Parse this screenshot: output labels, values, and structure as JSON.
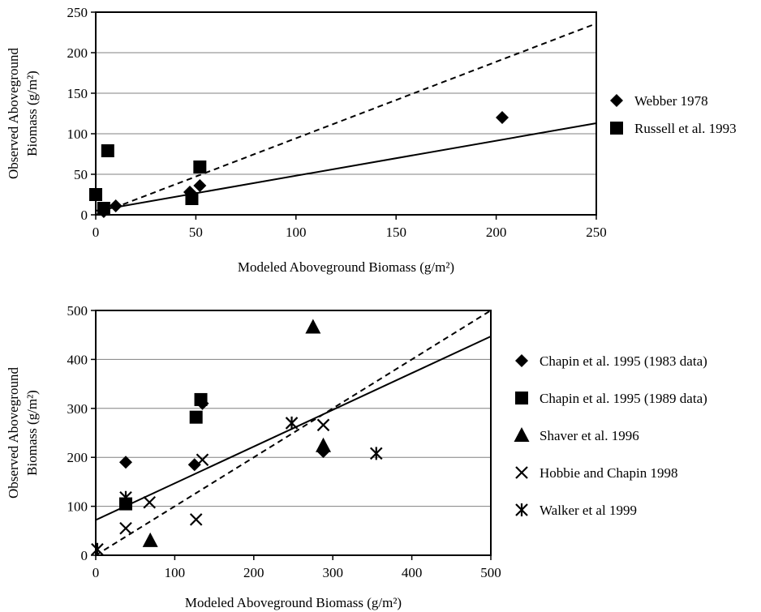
{
  "chart_data": [
    {
      "type": "scatter",
      "xlabel": "Modeled Aboveground Biomass (g/m²)",
      "ylabel_line1": "Observed Aboveground",
      "ylabel_line2": "Biomass (g/m²)",
      "xlim": [
        0,
        250
      ],
      "ylim": [
        0,
        250
      ],
      "xticks": [
        "0",
        "50",
        "100",
        "150",
        "200",
        "250"
      ],
      "yticks": [
        "0",
        "50",
        "100",
        "150",
        "200",
        "250"
      ],
      "grid": "horizontal",
      "legend_position": "right",
      "series": [
        {
          "name": "Webber 1978",
          "marker": "diamond",
          "points": [
            [
              4,
              4
            ],
            [
              10,
              11
            ],
            [
              47,
              28
            ],
            [
              52,
              36
            ],
            [
              203,
              120
            ]
          ]
        },
        {
          "name": "Russell et al. 1993",
          "marker": "square",
          "points": [
            [
              0,
              25
            ],
            [
              4,
              8
            ],
            [
              6,
              79
            ],
            [
              48,
              20
            ],
            [
              52,
              59
            ]
          ]
        }
      ],
      "lines": [
        {
          "style": "dashed",
          "from": [
            0,
            0
          ],
          "to": [
            250,
            236
          ]
        },
        {
          "style": "solid",
          "from": [
            0,
            5
          ],
          "to": [
            250,
            113
          ]
        }
      ]
    },
    {
      "type": "scatter",
      "xlabel": "Modeled Aboveground Biomass (g/m²)",
      "ylabel_line1": "Observed Aboveground",
      "ylabel_line2": "Biomass (g/m²)",
      "xlim": [
        0,
        500
      ],
      "ylim": [
        0,
        500
      ],
      "xticks": [
        "0",
        "100",
        "200",
        "300",
        "400",
        "500"
      ],
      "yticks": [
        "0",
        "100",
        "200",
        "300",
        "400",
        "500"
      ],
      "grid": "horizontal",
      "legend_position": "right",
      "series": [
        {
          "name": "Chapin et al. 1995 (1983 data)",
          "marker": "diamond",
          "points": [
            [
              38,
              190
            ],
            [
              125,
              185
            ],
            [
              135,
              310
            ],
            [
              288,
              212
            ]
          ]
        },
        {
          "name": "Chapin et al. 1995 (1989 data)",
          "marker": "square",
          "points": [
            [
              38,
              105
            ],
            [
              127,
              282
            ],
            [
              133,
              318
            ]
          ]
        },
        {
          "name": "Shaver et al. 1996",
          "marker": "triangle",
          "points": [
            [
              69,
              30
            ],
            [
              275,
              466
            ],
            [
              288,
              224
            ]
          ]
        },
        {
          "name": "Hobbie and Chapin 1998",
          "marker": "x",
          "points": [
            [
              38,
              55
            ],
            [
              68,
              108
            ],
            [
              127,
              73
            ],
            [
              135,
              195
            ],
            [
              288,
              266
            ]
          ]
        },
        {
          "name": "Walker et al 1999",
          "marker": "asterisk",
          "points": [
            [
              2,
              12
            ],
            [
              38,
              118
            ],
            [
              248,
              270
            ],
            [
              355,
              208
            ]
          ]
        }
      ],
      "lines": [
        {
          "style": "dashed",
          "from": [
            0,
            0
          ],
          "to": [
            500,
            500
          ]
        },
        {
          "style": "solid",
          "from": [
            0,
            72
          ],
          "to": [
            500,
            447
          ]
        }
      ]
    }
  ]
}
